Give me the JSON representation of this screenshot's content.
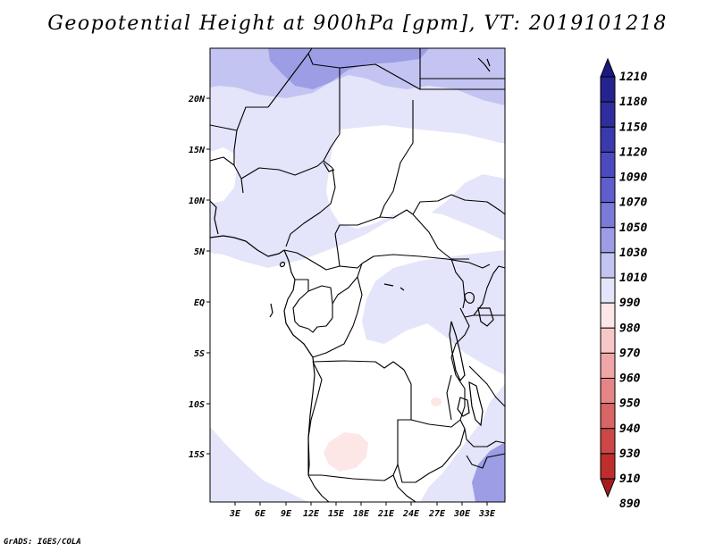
{
  "title": "Geopotential Height at 900hPa [gpm], VT: 2019101218",
  "credit": "GrADS: IGES/COLA",
  "map": {
    "lat_labels": [
      "20N",
      "15N",
      "10N",
      "5N",
      "EQ",
      "5S",
      "10S",
      "15S"
    ],
    "lon_labels": [
      "3E",
      "6E",
      "9E",
      "12E",
      "15E",
      "18E",
      "21E",
      "24E",
      "27E",
      "30E",
      "33E"
    ]
  },
  "colorbar": {
    "levels": [
      "1210",
      "1180",
      "1150",
      "1120",
      "1090",
      "1070",
      "1050",
      "1030",
      "1010",
      "990",
      "980",
      "970",
      "960",
      "950",
      "940",
      "930",
      "910",
      "890"
    ],
    "colors": [
      "#1a1a80",
      "#24248f",
      "#2e2e9e",
      "#3a3aad",
      "#4b4bbf",
      "#5e5ecc",
      "#7a7ad9",
      "#9d9de6",
      "#c4c4f2",
      "#e4e4fa",
      "#fde6e6",
      "#f8c8c8",
      "#efa6a6",
      "#e58585",
      "#d96666",
      "#cc4747",
      "#bf2e2e",
      "#a61c1c"
    ]
  },
  "colors": {
    "very_light_blue": "#e4e4fa",
    "light_blue": "#c4c4f2",
    "medium_blue": "#9d9de6",
    "light_pink": "#fde6e6"
  }
}
